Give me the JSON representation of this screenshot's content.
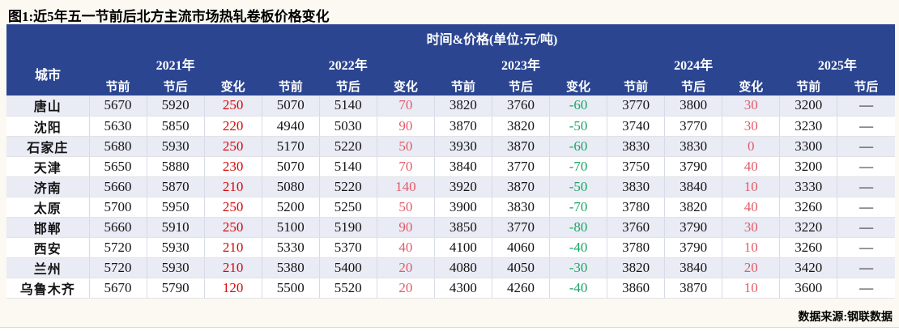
{
  "title": "图1:近5年五一节前后北方主流市场热轧卷板价格变化",
  "footer": {
    "source": "数据来源:钢联数据"
  },
  "colors": {
    "header_bg": "#2B4591",
    "alt_row_bg": "#E9EBF5",
    "change_up_strong": "#D40A0A",
    "change_up_light": "#E25B68",
    "change_down": "#1EA667",
    "page_bg": "#FBF9F1"
  },
  "chart_data": {
    "type": "table",
    "title": "图1:近5年五一节前后北方主流市场热轧卷板价格变化",
    "header_title": "时间&价格(单位:元/吨)",
    "city_col": "城市",
    "years": [
      {
        "label": "2021年",
        "cols": [
          "节前",
          "节后",
          "变化"
        ]
      },
      {
        "label": "2022年",
        "cols": [
          "节前",
          "节后",
          "变化"
        ]
      },
      {
        "label": "2023年",
        "cols": [
          "节前",
          "节后",
          "变化"
        ]
      },
      {
        "label": "2024年",
        "cols": [
          "节前",
          "节后",
          "变化"
        ]
      },
      {
        "label": "2025年",
        "cols": [
          "节前",
          "节后"
        ]
      }
    ],
    "rows": [
      {
        "city": "唐山",
        "cells": [
          [
            "5670",
            ""
          ],
          [
            "5920",
            ""
          ],
          [
            "250",
            "r"
          ],
          [
            "5070",
            ""
          ],
          [
            "5140",
            ""
          ],
          [
            "70",
            "p"
          ],
          [
            "3820",
            ""
          ],
          [
            "3760",
            ""
          ],
          [
            "-60",
            "g"
          ],
          [
            "3770",
            ""
          ],
          [
            "3800",
            ""
          ],
          [
            "30",
            "p"
          ],
          [
            "3200",
            ""
          ],
          [
            "—",
            ""
          ]
        ]
      },
      {
        "city": "沈阳",
        "cells": [
          [
            "5630",
            ""
          ],
          [
            "5850",
            ""
          ],
          [
            "220",
            "r"
          ],
          [
            "4940",
            ""
          ],
          [
            "5030",
            ""
          ],
          [
            "90",
            "p"
          ],
          [
            "3870",
            ""
          ],
          [
            "3820",
            ""
          ],
          [
            "-50",
            "g"
          ],
          [
            "3740",
            ""
          ],
          [
            "3770",
            ""
          ],
          [
            "30",
            "p"
          ],
          [
            "3230",
            ""
          ],
          [
            "—",
            ""
          ]
        ]
      },
      {
        "city": "石家庄",
        "cells": [
          [
            "5680",
            ""
          ],
          [
            "5930",
            ""
          ],
          [
            "250",
            "r"
          ],
          [
            "5170",
            ""
          ],
          [
            "5220",
            ""
          ],
          [
            "50",
            "p"
          ],
          [
            "3930",
            ""
          ],
          [
            "3870",
            ""
          ],
          [
            "-60",
            "g"
          ],
          [
            "3830",
            ""
          ],
          [
            "3830",
            ""
          ],
          [
            "0",
            "p"
          ],
          [
            "3300",
            ""
          ],
          [
            "—",
            ""
          ]
        ]
      },
      {
        "city": "天津",
        "cells": [
          [
            "5650",
            ""
          ],
          [
            "5880",
            ""
          ],
          [
            "230",
            "r"
          ],
          [
            "5070",
            ""
          ],
          [
            "5140",
            ""
          ],
          [
            "70",
            "p"
          ],
          [
            "3840",
            ""
          ],
          [
            "3770",
            ""
          ],
          [
            "-70",
            "g"
          ],
          [
            "3750",
            ""
          ],
          [
            "3790",
            ""
          ],
          [
            "40",
            "p"
          ],
          [
            "3200",
            ""
          ],
          [
            "—",
            ""
          ]
        ]
      },
      {
        "city": "济南",
        "cells": [
          [
            "5660",
            ""
          ],
          [
            "5870",
            ""
          ],
          [
            "210",
            "r"
          ],
          [
            "5080",
            ""
          ],
          [
            "5220",
            ""
          ],
          [
            "140",
            "p"
          ],
          [
            "3920",
            ""
          ],
          [
            "3870",
            ""
          ],
          [
            "-50",
            "g"
          ],
          [
            "3830",
            ""
          ],
          [
            "3840",
            ""
          ],
          [
            "10",
            "p"
          ],
          [
            "3330",
            ""
          ],
          [
            "—",
            ""
          ]
        ]
      },
      {
        "city": "太原",
        "cells": [
          [
            "5700",
            ""
          ],
          [
            "5950",
            ""
          ],
          [
            "250",
            "r"
          ],
          [
            "5200",
            ""
          ],
          [
            "5250",
            ""
          ],
          [
            "50",
            "p"
          ],
          [
            "3900",
            ""
          ],
          [
            "3830",
            ""
          ],
          [
            "-70",
            "g"
          ],
          [
            "3780",
            ""
          ],
          [
            "3820",
            ""
          ],
          [
            "40",
            "p"
          ],
          [
            "3260",
            ""
          ],
          [
            "—",
            ""
          ]
        ]
      },
      {
        "city": "邯郸",
        "cells": [
          [
            "5660",
            ""
          ],
          [
            "5910",
            ""
          ],
          [
            "250",
            "r"
          ],
          [
            "5100",
            ""
          ],
          [
            "5190",
            ""
          ],
          [
            "90",
            "p"
          ],
          [
            "3850",
            ""
          ],
          [
            "3770",
            ""
          ],
          [
            "-80",
            "g"
          ],
          [
            "3760",
            ""
          ],
          [
            "3790",
            ""
          ],
          [
            "30",
            "p"
          ],
          [
            "3220",
            ""
          ],
          [
            "—",
            ""
          ]
        ]
      },
      {
        "city": "西安",
        "cells": [
          [
            "5720",
            ""
          ],
          [
            "5930",
            ""
          ],
          [
            "210",
            "r"
          ],
          [
            "5330",
            ""
          ],
          [
            "5370",
            ""
          ],
          [
            "40",
            "p"
          ],
          [
            "4100",
            ""
          ],
          [
            "4060",
            ""
          ],
          [
            "-40",
            "g"
          ],
          [
            "3780",
            ""
          ],
          [
            "3790",
            ""
          ],
          [
            "10",
            "p"
          ],
          [
            "3260",
            ""
          ],
          [
            "—",
            ""
          ]
        ]
      },
      {
        "city": "兰州",
        "cells": [
          [
            "5720",
            ""
          ],
          [
            "5930",
            ""
          ],
          [
            "210",
            "r"
          ],
          [
            "5380",
            ""
          ],
          [
            "5400",
            ""
          ],
          [
            "20",
            "p"
          ],
          [
            "4080",
            ""
          ],
          [
            "4050",
            ""
          ],
          [
            "-30",
            "g"
          ],
          [
            "3820",
            ""
          ],
          [
            "3840",
            ""
          ],
          [
            "20",
            "p"
          ],
          [
            "3420",
            ""
          ],
          [
            "—",
            ""
          ]
        ]
      },
      {
        "city": "乌鲁木齐",
        "cells": [
          [
            "5670",
            ""
          ],
          [
            "5790",
            ""
          ],
          [
            "120",
            "r"
          ],
          [
            "5500",
            ""
          ],
          [
            "5520",
            ""
          ],
          [
            "20",
            "p"
          ],
          [
            "4300",
            ""
          ],
          [
            "4260",
            ""
          ],
          [
            "-40",
            "g"
          ],
          [
            "3860",
            ""
          ],
          [
            "3870",
            ""
          ],
          [
            "10",
            "p"
          ],
          [
            "3600",
            ""
          ],
          [
            "—",
            ""
          ]
        ]
      }
    ]
  }
}
